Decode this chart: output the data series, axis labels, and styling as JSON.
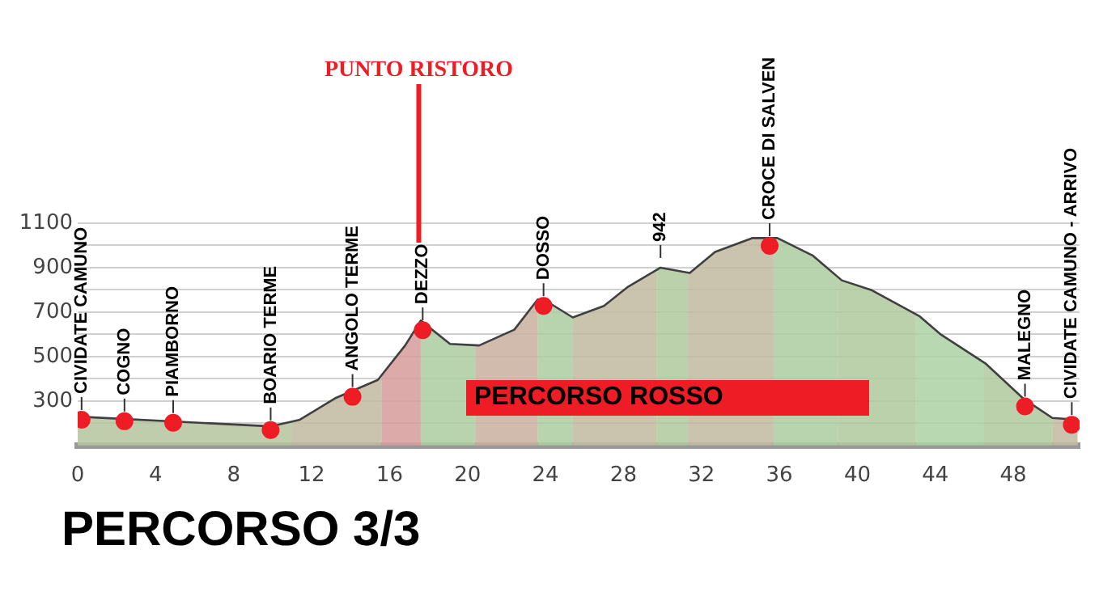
{
  "chart_data": {
    "type": "area",
    "title": "PERCORSO 3/3",
    "xlim": [
      0,
      51.4
    ],
    "xticks": [
      0,
      4,
      8,
      12,
      16,
      20,
      24,
      28,
      32,
      36,
      40,
      44,
      48
    ],
    "ylim": [
      100,
      1100
    ],
    "yticks": [
      {
        "value": 100,
        "label": null
      },
      {
        "value": 200,
        "label": null
      },
      300,
      {
        "value": 400,
        "label": null
      },
      500,
      {
        "value": 600,
        "label": null
      },
      700,
      {
        "value": 800,
        "label": null
      },
      900,
      {
        "value": 1000,
        "label": null
      },
      1100
    ],
    "grid": "y",
    "legend": false,
    "series": [
      {
        "color": "#404040",
        "x": [
          0,
          9.9,
          11.4,
          13.2,
          15.4,
          16.8,
          17.6,
          19.1,
          20.6,
          22.4,
          23.6,
          23.9,
          25.4,
          27.0,
          28.2,
          29.9,
          31.4,
          32.7,
          34.6,
          35.9,
          37.7,
          39.2,
          40.7,
          43.2,
          44.3,
          46.6,
          48.5,
          50.0,
          51.3
        ],
        "values": [
          230,
          186,
          216,
          312,
          395,
          550,
          662,
          557,
          550,
          621,
          757,
          757,
          676,
          728,
          812,
          900,
          876,
          971,
          1033,
          1033,
          955,
          843,
          800,
          681,
          598,
          467,
          312,
          224,
          216
        ]
      },
      {
        "type": "scatter",
        "marker": "circle",
        "color": "#ee1c25",
        "x": [
          0.2,
          2.4,
          4.9,
          9.9,
          14.1,
          17.7,
          23.9,
          35.5,
          48.6,
          51.0
        ],
        "values": [
          216,
          209,
          202,
          169,
          319,
          619,
          728,
          998,
          276,
          193
        ]
      }
    ],
    "bands": [
      {
        "axis": "x",
        "from": 0,
        "to": 11,
        "color": "#cfe0b5"
      },
      {
        "axis": "x",
        "from": 11,
        "to": 15.6,
        "color": "#ddd3b5"
      },
      {
        "axis": "x",
        "from": 15.6,
        "to": 17.6,
        "color": "#f7b0b0"
      },
      {
        "axis": "x",
        "from": 17.6,
        "to": 20.4,
        "color": "#c3ebb6"
      },
      {
        "axis": "x",
        "from": 20.4,
        "to": 23.6,
        "color": "#e6c8b4"
      },
      {
        "axis": "x",
        "from": 23.6,
        "to": 25.4,
        "color": "#c3ebb6"
      },
      {
        "axis": "x",
        "from": 25.4,
        "to": 29.7,
        "color": "#ddd3b5"
      },
      {
        "axis": "x",
        "from": 29.7,
        "to": 31.3,
        "color": "#c8e6b4"
      },
      {
        "axis": "x",
        "from": 31.3,
        "to": 35.7,
        "color": "#ddd3b5"
      },
      {
        "axis": "x",
        "from": 35.7,
        "to": 39,
        "color": "#c3ebb6"
      },
      {
        "axis": "x",
        "from": 39,
        "to": 43,
        "color": "#c8e6b4"
      },
      {
        "axis": "x",
        "from": 43,
        "to": 46.5,
        "color": "#c3f0b8"
      },
      {
        "axis": "x",
        "from": 46.5,
        "to": 50,
        "color": "#c8e6b4"
      },
      {
        "axis": "x",
        "from": 50,
        "to": 51.4,
        "color": "#ddd3b5"
      }
    ],
    "ref_lines": [
      {
        "axis": "x",
        "value": 17.5,
        "label": "PUNTO RISTORO",
        "color": "#ee1c25"
      }
    ],
    "annotations": [
      "PERCORSO ROSSO",
      {
        "text": "CIVIDATE CAMUNO",
        "x": 0.2,
        "y": 216
      },
      {
        "text": "COGNO",
        "x": 2.4,
        "y": 209
      },
      {
        "text": "PIAMBORNO",
        "x": 4.9,
        "y": 202
      },
      {
        "text": "BOARIO TERME",
        "x": 9.9,
        "y": 169
      },
      {
        "text": "ANGOLO TERME",
        "x": 14.1,
        "y": 319
      },
      {
        "text": "DEZZO",
        "x": 17.7,
        "y": 619
      },
      {
        "text": "DOSSO",
        "x": 23.9,
        "y": 728
      },
      {
        "text": "942",
        "x": 29.9,
        "y": 900
      },
      {
        "text": "CROCE DI SALVEN",
        "x": 35.5,
        "y": 998
      },
      {
        "text": "MALEGNO",
        "x": 48.6,
        "y": 276
      },
      {
        "text": "CIVIDATE CAMUNO - ARRIVO",
        "x": 51.0,
        "y": 193
      }
    ]
  }
}
